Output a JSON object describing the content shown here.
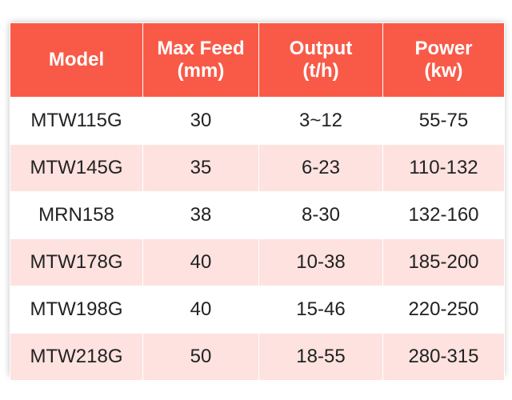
{
  "table": {
    "header": [
      "Model",
      "Max Feed\n(mm)",
      "Output\n(t/h)",
      "Power\n(kw)"
    ],
    "rows": [
      [
        "MTW115G",
        "30",
        "3~12",
        "55-75"
      ],
      [
        "MTW145G",
        "35",
        "6-23",
        "110-132"
      ],
      [
        "MRN158",
        "38",
        "8-30",
        "132-160"
      ],
      [
        "MTW178G",
        "40",
        "10-38",
        "185-200"
      ],
      [
        "MTW198G",
        "40",
        "15-46",
        "220-250"
      ],
      [
        "MTW218G",
        "50",
        "18-55",
        "280-315"
      ]
    ]
  }
}
